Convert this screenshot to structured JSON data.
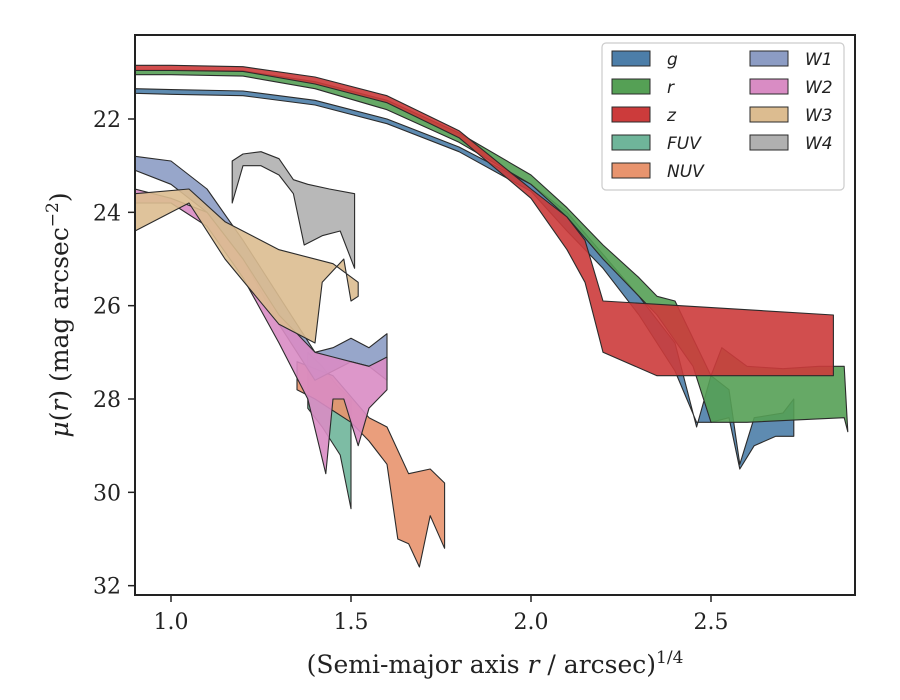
{
  "chart_data": {
    "type": "area",
    "xlabel": "(Semi-major axis r / arcsec)^{1/4}",
    "ylabel": "μ(r) (mag arcsec^{−2})",
    "xlim": [
      0.9,
      2.9
    ],
    "ylim": [
      32.2,
      20.2
    ],
    "y_inverted": true,
    "grid": false,
    "legend_position": "top-right",
    "legend_columns": 2,
    "xticks": [
      {
        "value": 1.0,
        "label": "1.0"
      },
      {
        "value": 1.5,
        "label": "1.5"
      },
      {
        "value": 2.0,
        "label": "2.0"
      },
      {
        "value": 2.5,
        "label": "2.5"
      }
    ],
    "yticks": [
      {
        "value": 22,
        "label": "22"
      },
      {
        "value": 24,
        "label": "24"
      },
      {
        "value": 26,
        "label": "26"
      },
      {
        "value": 28,
        "label": "28"
      },
      {
        "value": 30,
        "label": "30"
      },
      {
        "value": 32,
        "label": "32"
      }
    ],
    "series": [
      {
        "name": "g",
        "color": "#4c7ea9",
        "upper": [
          [
            0.9,
            21.35
          ],
          [
            1.0,
            21.37
          ],
          [
            1.2,
            21.4
          ],
          [
            1.4,
            21.6
          ],
          [
            1.6,
            22.0
          ],
          [
            1.8,
            22.6
          ],
          [
            2.0,
            23.4
          ],
          [
            2.1,
            24.0
          ],
          [
            2.2,
            24.9
          ],
          [
            2.3,
            25.8
          ],
          [
            2.4,
            26.8
          ],
          [
            2.46,
            28.6
          ],
          [
            2.5,
            27.5
          ],
          [
            2.55,
            27.8
          ],
          [
            2.58,
            29.4
          ],
          [
            2.62,
            28.4
          ],
          [
            2.7,
            28.3
          ],
          [
            2.73,
            28.0
          ]
        ],
        "lower": [
          [
            2.73,
            28.8
          ],
          [
            2.68,
            28.8
          ],
          [
            2.62,
            29.0
          ],
          [
            2.58,
            29.5
          ],
          [
            2.55,
            28.4
          ],
          [
            2.5,
            28.5
          ],
          [
            2.46,
            28.5
          ],
          [
            2.4,
            27.4
          ],
          [
            2.3,
            26.2
          ],
          [
            2.2,
            25.2
          ],
          [
            2.1,
            24.4
          ],
          [
            2.0,
            23.55
          ],
          [
            1.8,
            22.7
          ],
          [
            1.6,
            22.1
          ],
          [
            1.4,
            21.7
          ],
          [
            1.2,
            21.5
          ],
          [
            1.0,
            21.47
          ],
          [
            0.9,
            21.45
          ]
        ]
      },
      {
        "name": "r",
        "color": "#55a055",
        "upper": [
          [
            0.9,
            20.95
          ],
          [
            1.0,
            20.95
          ],
          [
            1.2,
            20.97
          ],
          [
            1.4,
            21.2
          ],
          [
            1.6,
            21.6
          ],
          [
            1.8,
            22.3
          ],
          [
            2.0,
            23.2
          ],
          [
            2.1,
            23.9
          ],
          [
            2.2,
            24.7
          ],
          [
            2.3,
            25.4
          ],
          [
            2.35,
            25.8
          ],
          [
            2.4,
            25.9
          ],
          [
            2.5,
            27.5
          ],
          [
            2.53,
            26.9
          ],
          [
            2.6,
            27.3
          ],
          [
            2.7,
            27.35
          ],
          [
            2.8,
            27.3
          ],
          [
            2.87,
            27.3
          ],
          [
            2.88,
            28.7
          ]
        ],
        "lower": [
          [
            2.87,
            28.4
          ],
          [
            2.6,
            28.5
          ],
          [
            2.55,
            28.5
          ],
          [
            2.5,
            28.5
          ],
          [
            2.45,
            27.3
          ],
          [
            2.35,
            26.2
          ],
          [
            2.3,
            25.8
          ],
          [
            2.2,
            25.0
          ],
          [
            2.1,
            24.1
          ],
          [
            2.0,
            23.4
          ],
          [
            1.8,
            22.5
          ],
          [
            1.6,
            21.8
          ],
          [
            1.4,
            21.35
          ],
          [
            1.2,
            21.08
          ],
          [
            1.0,
            21.05
          ],
          [
            0.9,
            21.05
          ]
        ]
      },
      {
        "name": "z",
        "color": "#cc3b3b",
        "upper": [
          [
            0.9,
            20.85
          ],
          [
            1.0,
            20.85
          ],
          [
            1.2,
            20.88
          ],
          [
            1.4,
            21.1
          ],
          [
            1.6,
            21.5
          ],
          [
            1.8,
            22.25
          ],
          [
            2.0,
            23.5
          ],
          [
            2.1,
            24.1
          ],
          [
            2.15,
            24.6
          ],
          [
            2.2,
            25.9
          ],
          [
            2.84,
            26.2
          ]
        ],
        "lower": [
          [
            2.84,
            27.5
          ],
          [
            2.45,
            27.5
          ],
          [
            2.35,
            27.5
          ],
          [
            2.2,
            27.0
          ],
          [
            2.15,
            25.5
          ],
          [
            2.1,
            24.8
          ],
          [
            2.0,
            23.7
          ],
          [
            1.8,
            22.4
          ],
          [
            1.6,
            21.65
          ],
          [
            1.4,
            21.25
          ],
          [
            1.2,
            20.98
          ],
          [
            1.0,
            20.96
          ],
          [
            0.9,
            20.96
          ]
        ]
      },
      {
        "name": "FUV",
        "color": "#6fb59a",
        "upper": [
          [
            1.38,
            27.0
          ],
          [
            1.42,
            27.3
          ],
          [
            1.46,
            27.7
          ],
          [
            1.5,
            28.0
          ]
        ],
        "lower": [
          [
            1.5,
            30.35
          ],
          [
            1.47,
            29.2
          ],
          [
            1.42,
            28.6
          ],
          [
            1.38,
            28.2
          ]
        ]
      },
      {
        "name": "NUV",
        "color": "#e8946e",
        "upper": [
          [
            1.35,
            27.2
          ],
          [
            1.45,
            27.5
          ],
          [
            1.55,
            28.4
          ],
          [
            1.6,
            28.6
          ],
          [
            1.66,
            29.6
          ],
          [
            1.72,
            29.5
          ],
          [
            1.76,
            29.8
          ]
        ],
        "lower": [
          [
            1.76,
            31.2
          ],
          [
            1.72,
            30.5
          ],
          [
            1.69,
            31.6
          ],
          [
            1.66,
            31.1
          ],
          [
            1.63,
            31.0
          ],
          [
            1.6,
            29.4
          ],
          [
            1.55,
            28.9
          ],
          [
            1.5,
            28.5
          ],
          [
            1.4,
            28.0
          ],
          [
            1.35,
            27.8
          ]
        ]
      },
      {
        "name": "W1",
        "color": "#8c9cc4",
        "upper": [
          [
            0.9,
            22.8
          ],
          [
            1.0,
            22.9
          ],
          [
            1.1,
            23.5
          ],
          [
            1.2,
            24.6
          ],
          [
            1.3,
            25.8
          ],
          [
            1.4,
            27.0
          ],
          [
            1.45,
            26.9
          ],
          [
            1.5,
            26.7
          ],
          [
            1.55,
            26.9
          ],
          [
            1.6,
            26.6
          ]
        ],
        "lower": [
          [
            1.6,
            27.6
          ],
          [
            1.55,
            27.3
          ],
          [
            1.5,
            27.2
          ],
          [
            1.45,
            27.4
          ],
          [
            1.4,
            27.6
          ],
          [
            1.3,
            26.4
          ],
          [
            1.2,
            25.0
          ],
          [
            1.1,
            24.0
          ],
          [
            1.0,
            23.4
          ],
          [
            0.9,
            23.1
          ]
        ]
      },
      {
        "name": "W2",
        "color": "#d98cc4",
        "upper": [
          [
            0.9,
            23.5
          ],
          [
            1.0,
            23.7
          ],
          [
            1.1,
            24.0
          ],
          [
            1.2,
            25.0
          ],
          [
            1.3,
            26.2
          ],
          [
            1.4,
            27.0
          ],
          [
            1.45,
            27.1
          ],
          [
            1.5,
            27.2
          ],
          [
            1.55,
            27.3
          ],
          [
            1.6,
            27.1
          ]
        ],
        "lower": [
          [
            1.6,
            27.8
          ],
          [
            1.55,
            28.2
          ],
          [
            1.52,
            29.0
          ],
          [
            1.48,
            28.0
          ],
          [
            1.45,
            28.0
          ],
          [
            1.43,
            29.6
          ],
          [
            1.38,
            28.0
          ],
          [
            1.3,
            26.8
          ],
          [
            1.2,
            25.4
          ],
          [
            1.1,
            24.3
          ],
          [
            1.0,
            23.8
          ],
          [
            0.9,
            23.8
          ]
        ]
      },
      {
        "name": "W3",
        "color": "#dcbc90",
        "upper": [
          [
            0.9,
            23.6
          ],
          [
            1.05,
            23.5
          ],
          [
            1.15,
            24.2
          ],
          [
            1.3,
            24.8
          ],
          [
            1.45,
            25.1
          ],
          [
            1.52,
            25.5
          ]
        ],
        "lower": [
          [
            1.52,
            25.8
          ],
          [
            1.5,
            25.9
          ],
          [
            1.48,
            25.0
          ],
          [
            1.42,
            25.5
          ],
          [
            1.4,
            26.8
          ],
          [
            1.3,
            26.4
          ],
          [
            1.15,
            25.0
          ],
          [
            1.05,
            23.8
          ],
          [
            0.9,
            24.4
          ]
        ]
      },
      {
        "name": "W4",
        "color": "#b0b0b0",
        "upper": [
          [
            1.17,
            22.9
          ],
          [
            1.2,
            22.75
          ],
          [
            1.25,
            22.7
          ],
          [
            1.3,
            22.85
          ],
          [
            1.34,
            23.3
          ],
          [
            1.38,
            23.4
          ],
          [
            1.44,
            23.5
          ],
          [
            1.51,
            23.6
          ]
        ],
        "lower": [
          [
            1.51,
            25.2
          ],
          [
            1.47,
            24.4
          ],
          [
            1.42,
            24.5
          ],
          [
            1.37,
            24.7
          ],
          [
            1.34,
            23.6
          ],
          [
            1.3,
            23.2
          ],
          [
            1.25,
            23.0
          ],
          [
            1.2,
            23.0
          ],
          [
            1.17,
            23.8
          ]
        ]
      }
    ]
  }
}
